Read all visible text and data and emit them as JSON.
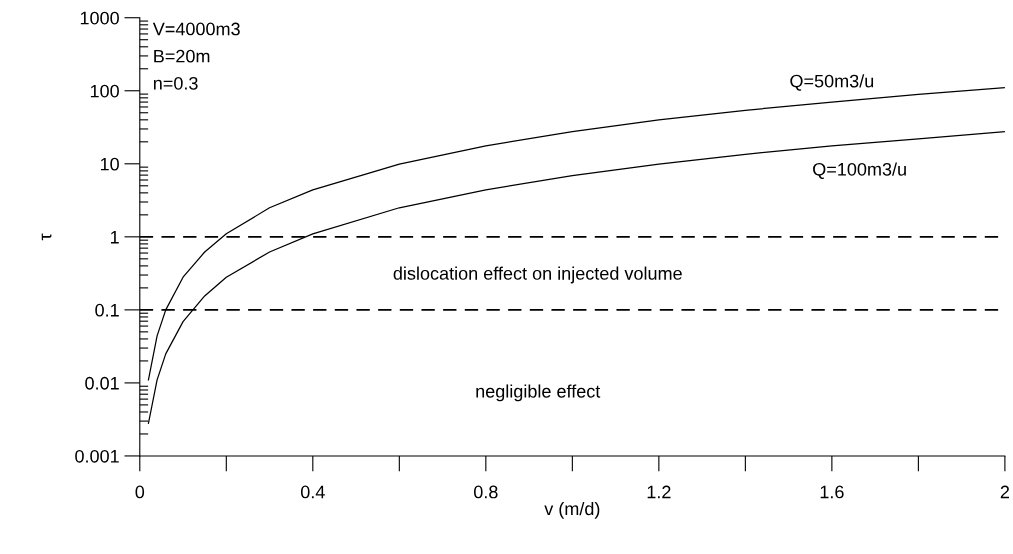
{
  "chart_data": {
    "type": "line",
    "xlabel": "v (m/d)",
    "ylabel": "τ",
    "log": "y",
    "grid": false,
    "legend": false,
    "marker": "none",
    "line_style": "solid",
    "xlim": [
      0,
      2
    ],
    "xticks": [
      0,
      {
        "value": 0.2,
        "label": null
      },
      0.4,
      {
        "value": 0.6,
        "label": null
      },
      0.8,
      {
        "value": 1.0,
        "label": null
      },
      1.2,
      {
        "value": 1.4,
        "label": null
      },
      1.6,
      {
        "value": 1.8,
        "label": null
      },
      2
    ],
    "ylim": [
      0.001,
      1000
    ],
    "yticks": [
      0.001,
      0.01,
      0.1,
      1,
      10,
      100,
      1000
    ],
    "x": [
      0.02,
      0.04,
      0.06,
      0.1,
      0.15,
      0.2,
      0.3,
      0.4,
      0.6,
      0.8,
      1.0,
      1.2,
      1.4,
      1.6,
      1.8,
      2.0
    ],
    "series": [
      {
        "name": "Q=50m3/u",
        "color": "#000000",
        "values": [
          0.011,
          0.044,
          0.1,
          0.28,
          0.62,
          1.1,
          2.5,
          4.4,
          9.9,
          17.6,
          27.5,
          40,
          54,
          70,
          89,
          110
        ]
      },
      {
        "name": "Q=100m3/u",
        "color": "#000000",
        "values": [
          0.0028,
          0.011,
          0.025,
          0.069,
          0.155,
          0.28,
          0.62,
          1.1,
          2.5,
          4.4,
          6.9,
          9.9,
          13.5,
          17.6,
          22,
          27.5
        ]
      }
    ],
    "ref_lines": [
      {
        "axis": "y",
        "value": 1,
        "color": "#000000",
        "line_style": "dashed"
      },
      {
        "axis": "y",
        "value": 0.1,
        "color": "#000000",
        "line_style": "dashed"
      }
    ],
    "annotations": [
      "V=4000m3",
      "B=20m",
      "n=0.3",
      "dislocation effect on injected volume",
      "negligible effect"
    ]
  }
}
